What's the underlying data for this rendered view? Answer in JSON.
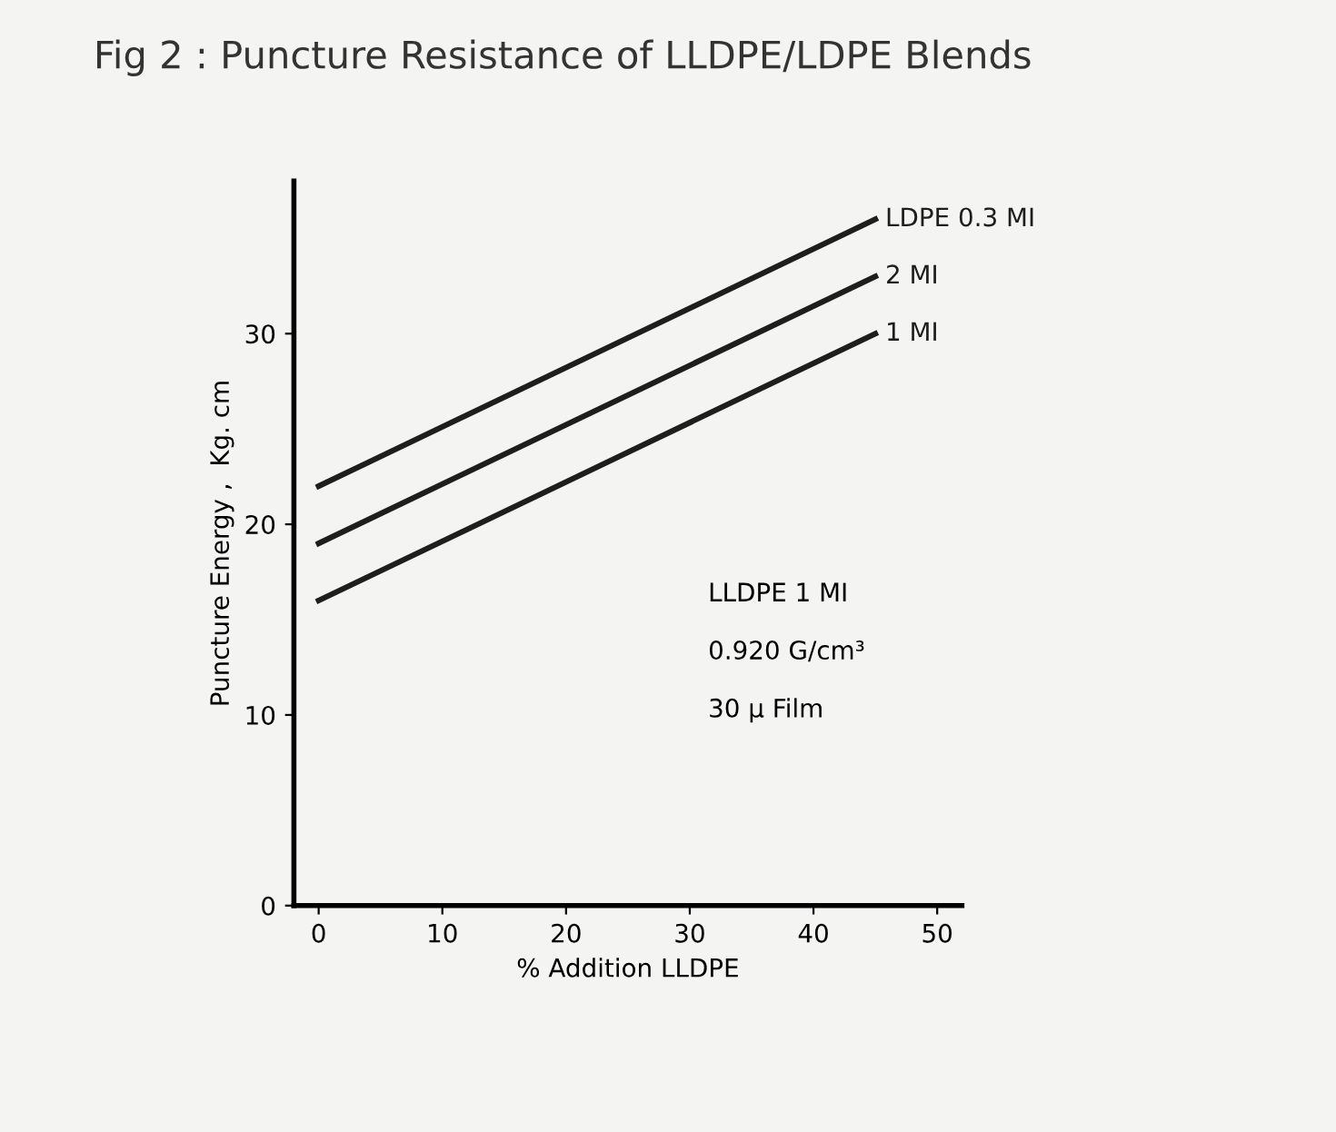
{
  "chart_data": {
    "type": "line",
    "title": "Fig 2 : Puncture Resistance of LLDPE/LDPE Blends",
    "xlabel": "% Addition LLDPE",
    "ylabel": "Puncture Energy ,  Kg. cm",
    "x": [
      0,
      45
    ],
    "series": [
      {
        "name": "LDPE 0.3 MI",
        "color": "#1e1e1e",
        "values": [
          22,
          36
        ]
      },
      {
        "name": "2 MI",
        "color": "#1e1e1e",
        "values": [
          19,
          33
        ]
      },
      {
        "name": "1 MI",
        "color": "#1e1e1e",
        "values": [
          16,
          30
        ]
      }
    ],
    "xlim": [
      -2,
      52
    ],
    "ylim": [
      0,
      38
    ],
    "xticks": [
      0,
      10,
      20,
      30,
      40,
      50
    ],
    "yticks": [
      0,
      10,
      20,
      30
    ],
    "annotations": [
      "LLDPE 1 MI",
      "0.920 G/cm³",
      "30 μ Film"
    ],
    "grid": false,
    "legend": false,
    "marker": "none",
    "line_style": "solid"
  }
}
